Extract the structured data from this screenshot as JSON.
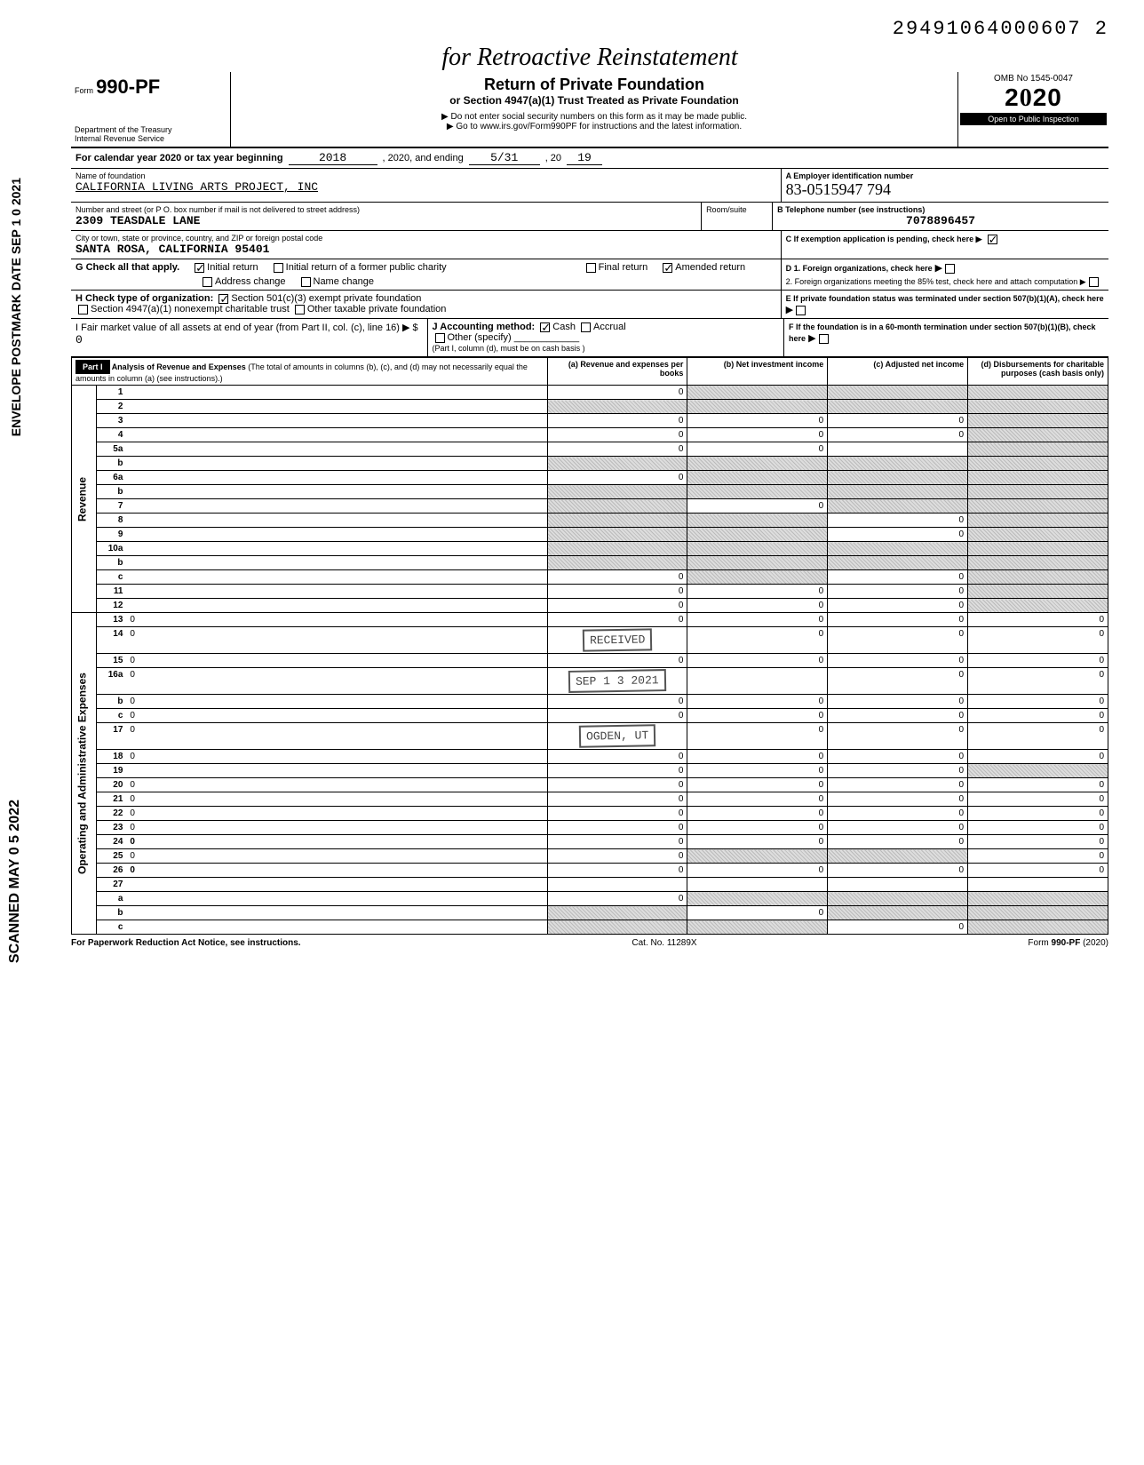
{
  "top_number": "29491064000607   2",
  "handwritten_title": "for Retroactive Reinstatement",
  "form": {
    "number": "990-PF",
    "dept": "Department of the Treasury",
    "irs": "Internal Revenue Service",
    "title": "Return of Private Foundation",
    "subtitle": "or Section 4947(a)(1) Trust Treated as Private Foundation",
    "note1": "▶ Do not enter social security numbers on this form as it may be made public.",
    "note2": "▶ Go to www.irs.gov/Form990PF for instructions and the latest information.",
    "omb": "OMB No 1545-0047",
    "year": "2020",
    "open": "Open to Public Inspection"
  },
  "period": {
    "label": "For calendar year 2020 or tax year beginning",
    "begin": "2018",
    "mid": ", 2020, and ending",
    "end_month": "5/31",
    "end_year": "19",
    "twenty": ", 20"
  },
  "foundation": {
    "name_label": "Name of foundation",
    "name": "CALIFORNIA LIVING ARTS PROJECT, INC",
    "addr_label": "Number and street (or P O. box number if mail is not delivered to street address)",
    "street": "2309 TEASDALE LANE",
    "city_label": "City or town, state or province, country, and ZIP or foreign postal code",
    "city": "SANTA ROSA, CALIFORNIA  95401",
    "ein_label": "A  Employer identification number",
    "ein": "83-0515947  794",
    "phone_label": "B  Telephone number (see instructions)",
    "phone": "7078896457",
    "room": "Room/suite"
  },
  "boxC": "C  If exemption application is pending, check here ▶",
  "boxG": {
    "label": "G   Check all that apply.",
    "initial": "Initial return",
    "initial_former": "Initial return of a former public charity",
    "final": "Final return",
    "amended": "Amended return",
    "addr_change": "Address change",
    "name_change": "Name change"
  },
  "boxD": {
    "d1": "D  1. Foreign organizations, check here",
    "d2": "2. Foreign organizations meeting the 85% test, check here and attach computation"
  },
  "boxH": {
    "label": "H   Check type of organization:",
    "opt1": "Section 501(c)(3) exempt private foundation",
    "opt2": "Section 4947(a)(1) nonexempt charitable trust",
    "opt3": "Other taxable private foundation"
  },
  "boxE": "E  If private foundation status was terminated under section 507(b)(1)(A), check here",
  "boxI": {
    "label": "I     Fair market value of all assets at end of year  (from Part II, col. (c), line 16) ▶ $",
    "value": "0",
    "j": "J  Accounting method:",
    "cash": "Cash",
    "accrual": "Accrual",
    "other": "Other (specify)",
    "note": "(Part I, column (d), must be on cash basis )"
  },
  "boxF": "F  If the foundation is in a 60-month termination under section 507(b)(1)(B), check here",
  "part1": {
    "label": "Part I",
    "title": "Analysis of Revenue and Expenses",
    "note": "(The total of amounts in columns (b), (c), and (d) may not necessarily equal the amounts in column (a) (see instructions).)",
    "col_a": "(a) Revenue and expenses per books",
    "col_b": "(b) Net investment income",
    "col_c": "(c) Adjusted net income",
    "col_d": "(d) Disbursements for charitable purposes (cash basis only)"
  },
  "side_revenue": "Revenue",
  "side_expenses": "Operating and Administrative Expenses",
  "left_stamp1": "ENVELOPE POSTMARK DATE  SEP 1 0 2021",
  "left_stamp2": "SCANNED  MAY 0 5 2022",
  "fraction": "3/4",
  "lines": [
    {
      "n": "1",
      "d": "",
      "a": "0",
      "b": "",
      "c": "",
      "bs": true,
      "cs": true,
      "ds": true
    },
    {
      "n": "2",
      "d": "",
      "a": "",
      "b": "",
      "c": "",
      "as": true,
      "bs": true,
      "cs": true,
      "ds": true
    },
    {
      "n": "3",
      "d": "",
      "a": "0",
      "b": "0",
      "c": "0",
      "ds": true
    },
    {
      "n": "4",
      "d": "",
      "a": "0",
      "b": "0",
      "c": "0",
      "ds": true
    },
    {
      "n": "5a",
      "d": "",
      "a": "0",
      "b": "0",
      "c": "",
      "ds": true
    },
    {
      "n": "b",
      "d": "",
      "a": "",
      "b": "",
      "c": "",
      "as": true,
      "bs": true,
      "cs": true,
      "ds": true
    },
    {
      "n": "6a",
      "d": "",
      "a": "0",
      "b": "",
      "c": "",
      "bs": true,
      "cs": true,
      "ds": true
    },
    {
      "n": "b",
      "d": "",
      "a": "",
      "b": "",
      "c": "",
      "as": true,
      "bs": true,
      "cs": true,
      "ds": true
    },
    {
      "n": "7",
      "d": "",
      "a": "",
      "b": "0",
      "c": "",
      "as": true,
      "cs": true,
      "ds": true
    },
    {
      "n": "8",
      "d": "",
      "a": "",
      "b": "",
      "c": "0",
      "as": true,
      "bs": true,
      "ds": true
    },
    {
      "n": "9",
      "d": "",
      "a": "",
      "b": "",
      "c": "0",
      "as": true,
      "bs": true,
      "ds": true
    },
    {
      "n": "10a",
      "d": "",
      "a": "",
      "b": "",
      "c": "",
      "as": true,
      "bs": true,
      "cs": true,
      "ds": true
    },
    {
      "n": "b",
      "d": "",
      "a": "",
      "b": "",
      "c": "",
      "as": true,
      "bs": true,
      "cs": true,
      "ds": true
    },
    {
      "n": "c",
      "d": "",
      "a": "0",
      "b": "",
      "c": "0",
      "bs": true,
      "ds": true
    },
    {
      "n": "11",
      "d": "",
      "a": "0",
      "b": "0",
      "c": "0",
      "ds": true
    },
    {
      "n": "12",
      "d": "",
      "a": "0",
      "b": "0",
      "c": "0",
      "ds": true,
      "bold": true
    },
    {
      "n": "13",
      "d": "0",
      "a": "0",
      "b": "0",
      "c": "0"
    },
    {
      "n": "14",
      "d": "0",
      "a": "",
      "b": "0",
      "c": "0",
      "stamp": "RECEIVED"
    },
    {
      "n": "15",
      "d": "0",
      "a": "0",
      "b": "0",
      "c": "0"
    },
    {
      "n": "16a",
      "d": "0",
      "a": "",
      "b": "",
      "c": "0",
      "stamp": "SEP 1 3 2021"
    },
    {
      "n": "b",
      "d": "0",
      "a": "0",
      "b": "0",
      "c": "0"
    },
    {
      "n": "c",
      "d": "0",
      "a": "0",
      "b": "0",
      "c": "0"
    },
    {
      "n": "17",
      "d": "0",
      "a": "",
      "b": "0",
      "c": "0",
      "stamp": "OGDEN, UT"
    },
    {
      "n": "18",
      "d": "0",
      "a": "0",
      "b": "0",
      "c": "0"
    },
    {
      "n": "19",
      "d": "",
      "a": "0",
      "b": "0",
      "c": "0",
      "ds": true
    },
    {
      "n": "20",
      "d": "0",
      "a": "0",
      "b": "0",
      "c": "0"
    },
    {
      "n": "21",
      "d": "0",
      "a": "0",
      "b": "0",
      "c": "0"
    },
    {
      "n": "22",
      "d": "0",
      "a": "0",
      "b": "0",
      "c": "0"
    },
    {
      "n": "23",
      "d": "0",
      "a": "0",
      "b": "0",
      "c": "0"
    },
    {
      "n": "24",
      "d": "0",
      "a": "0",
      "b": "0",
      "c": "0",
      "bold": true
    },
    {
      "n": "25",
      "d": "0",
      "a": "0",
      "b": "",
      "c": "",
      "bs": true,
      "cs": true
    },
    {
      "n": "26",
      "d": "0",
      "a": "0",
      "b": "0",
      "c": "0",
      "bold": true
    },
    {
      "n": "27",
      "d": "",
      "a": "",
      "b": "",
      "c": "",
      "nb": true
    },
    {
      "n": "a",
      "d": "",
      "a": "0",
      "b": "",
      "c": "",
      "bs": true,
      "cs": true,
      "ds": true,
      "bold": true
    },
    {
      "n": "b",
      "d": "",
      "a": "",
      "b": "0",
      "c": "",
      "as": true,
      "cs": true,
      "ds": true,
      "bold": true
    },
    {
      "n": "c",
      "d": "",
      "a": "",
      "b": "",
      "c": "0",
      "as": true,
      "bs": true,
      "ds": true,
      "bold": true
    }
  ],
  "footer": {
    "left": "For Paperwork Reduction Act Notice, see instructions.",
    "mid": "Cat. No. 11289X",
    "right": "Form 990-PF (2020)"
  }
}
